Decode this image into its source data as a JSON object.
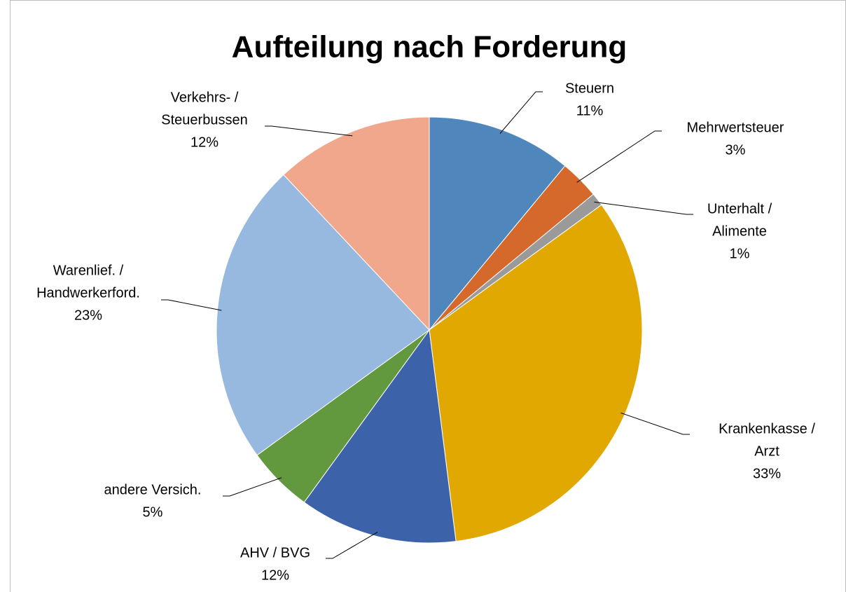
{
  "chart_data": {
    "type": "pie",
    "title": "Aufteilung nach Forderung",
    "categories": [
      [
        "Steuern"
      ],
      [
        "Mehrwertsteuer"
      ],
      [
        "Unterhalt /",
        "Alimente"
      ],
      [
        "Krankenkasse /",
        "Arzt"
      ],
      [
        "AHV / BVG"
      ],
      [
        "andere Versich."
      ],
      [
        "Warenlief. /",
        "Handwerkerford."
      ],
      [
        "Verkehrs- /",
        "Steuerbussen"
      ]
    ],
    "values": [
      11,
      3,
      1,
      33,
      12,
      5,
      23,
      12
    ],
    "value_labels": [
      "11%",
      "3%",
      "1%",
      "33%",
      "12%",
      "5%",
      "23%",
      "12%"
    ],
    "colors": [
      "#4f87bc",
      "#d5692b",
      "#9a9a9a",
      "#e0a800",
      "#3c63aa",
      "#62993f",
      "#97b8df",
      "#f0a78b"
    ]
  }
}
